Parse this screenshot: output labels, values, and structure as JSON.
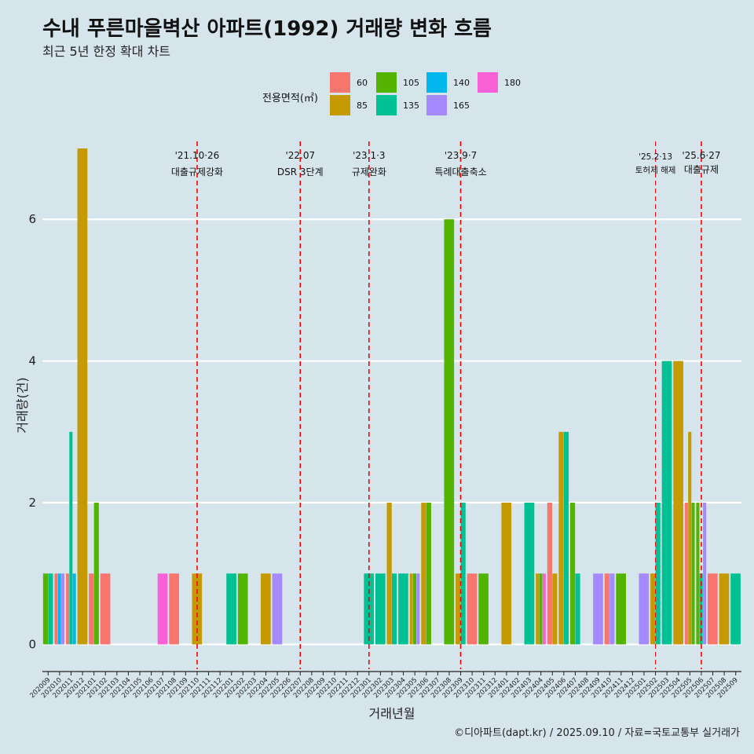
{
  "chart_data": {
    "type": "bar",
    "title": "수내 푸른마을벽산 아파트(1992) 거래량 변화 흐름",
    "subtitle": "최근 5년 한정 확대 차트",
    "xlabel": "거래년월",
    "ylabel": "거래량(건)",
    "ylim": [
      -0.35,
      7.1
    ],
    "yticks": [
      0,
      2,
      4,
      6
    ],
    "legend_title": "전용면적(㎡)",
    "legend_position": "top",
    "grid": "y-major",
    "caption": "©디아파트(dapt.kr) / 2025.09.10 / 자료=국토교통부 실거래가",
    "categories": [
      "202009",
      "202010",
      "202011",
      "202012",
      "202101",
      "202102",
      "202103",
      "202104",
      "202105",
      "202106",
      "202107",
      "202108",
      "202109",
      "202110",
      "202111",
      "202112",
      "202201",
      "202202",
      "202203",
      "202204",
      "202205",
      "202206",
      "202207",
      "202208",
      "202209",
      "202210",
      "202211",
      "202212",
      "202301",
      "202302",
      "202303",
      "202304",
      "202305",
      "202306",
      "202307",
      "202308",
      "202309",
      "202310",
      "202311",
      "202312",
      "202401",
      "202402",
      "202403",
      "202404",
      "202405",
      "202406",
      "202407",
      "202408",
      "202409",
      "202410",
      "202411",
      "202412",
      "202501",
      "202502",
      "202503",
      "202504",
      "202505",
      "202506",
      "202507",
      "202508",
      "202509"
    ],
    "series": [
      {
        "name": "60",
        "color": "#f8766d",
        "values": [
          0,
          1,
          1,
          0,
          1,
          1,
          0,
          0,
          0,
          0,
          0,
          1,
          0,
          0,
          0,
          0,
          0,
          0,
          0,
          0,
          0,
          0,
          0,
          0,
          0,
          0,
          0,
          0,
          0,
          0,
          0,
          0,
          0,
          0,
          0,
          0,
          0,
          1,
          0,
          0,
          0,
          0,
          0,
          0,
          2,
          0,
          0,
          0,
          0,
          1,
          0,
          0,
          0,
          0,
          0,
          0,
          2,
          0,
          1,
          0,
          0
        ]
      },
      {
        "name": "85",
        "color": "#c49a00",
        "values": [
          0,
          0,
          0,
          7,
          0,
          0,
          0,
          0,
          0,
          0,
          0,
          0,
          0,
          1,
          0,
          0,
          0,
          0,
          0,
          1,
          0,
          0,
          0,
          0,
          0,
          0,
          0,
          0,
          0,
          0,
          2,
          0,
          1,
          2,
          0,
          0,
          1,
          0,
          0,
          0,
          2,
          0,
          0,
          1,
          1,
          3,
          0,
          0,
          0,
          0,
          0,
          0,
          0,
          1,
          0,
          4,
          3,
          0,
          0,
          1,
          0
        ]
      },
      {
        "name": "105",
        "color": "#53b400",
        "values": [
          1,
          0,
          0,
          0,
          2,
          0,
          0,
          0,
          0,
          0,
          0,
          0,
          0,
          0,
          0,
          0,
          0,
          1,
          0,
          0,
          0,
          0,
          0,
          0,
          0,
          0,
          0,
          0,
          0,
          0,
          0,
          0,
          1,
          2,
          0,
          6,
          0,
          0,
          1,
          0,
          0,
          0,
          0,
          1,
          0,
          0,
          2,
          0,
          0,
          0,
          1,
          0,
          0,
          0,
          0,
          0,
          2,
          2,
          0,
          0,
          0
        ]
      },
      {
        "name": "135",
        "color": "#00c094",
        "values": [
          1,
          0,
          3,
          0,
          0,
          0,
          0,
          0,
          0,
          0,
          0,
          0,
          0,
          0,
          0,
          0,
          1,
          0,
          0,
          0,
          0,
          0,
          0,
          0,
          0,
          0,
          0,
          0,
          1,
          1,
          1,
          1,
          0,
          0,
          0,
          0,
          2,
          0,
          0,
          0,
          0,
          0,
          2,
          0,
          0,
          3,
          1,
          0,
          0,
          0,
          0,
          0,
          0,
          2,
          4,
          0,
          0,
          1,
          0,
          0,
          1
        ]
      },
      {
        "name": "140",
        "color": "#00b6eb",
        "values": [
          0,
          1,
          1,
          0,
          0,
          0,
          0,
          0,
          0,
          0,
          0,
          0,
          0,
          0,
          0,
          0,
          0,
          0,
          0,
          0,
          0,
          0,
          0,
          0,
          0,
          0,
          0,
          0,
          0,
          0,
          0,
          0,
          0,
          0,
          0,
          0,
          0,
          0,
          0,
          0,
          0,
          0,
          0,
          0,
          0,
          0,
          0,
          0,
          0,
          0,
          0,
          0,
          0,
          0,
          0,
          0,
          0,
          0,
          0,
          0,
          0
        ]
      },
      {
        "name": "165",
        "color": "#a58aff",
        "values": [
          0,
          1,
          0,
          0,
          0,
          0,
          0,
          0,
          0,
          0,
          0,
          0,
          0,
          0,
          0,
          0,
          0,
          0,
          0,
          0,
          1,
          0,
          0,
          0,
          0,
          0,
          0,
          0,
          0,
          0,
          0,
          0,
          1,
          0,
          0,
          0,
          0,
          0,
          0,
          0,
          0,
          0,
          0,
          0,
          0,
          0,
          0,
          0,
          1,
          1,
          0,
          0,
          1,
          0,
          0,
          0,
          0,
          2,
          0,
          0,
          0
        ]
      },
      {
        "name": "180",
        "color": "#fb61d7",
        "values": [
          0,
          0,
          0,
          0,
          0,
          0,
          0,
          0,
          0,
          0,
          1,
          0,
          0,
          0,
          0,
          0,
          0,
          0,
          0,
          0,
          0,
          0,
          0,
          0,
          0,
          0,
          0,
          0,
          0,
          0,
          0,
          0,
          0,
          0,
          0,
          0,
          0,
          0,
          0,
          0,
          0,
          0,
          0,
          1,
          0,
          0,
          0,
          0,
          0,
          0,
          0,
          0,
          0,
          0,
          0,
          0,
          0,
          0,
          0,
          0,
          0
        ]
      }
    ],
    "annotations": [
      {
        "x": "202110",
        "date": "'21.10·26",
        "label": "대출규제강화"
      },
      {
        "x": "202207",
        "date": "'22.07",
        "label": "DSR 3단계"
      },
      {
        "x": "202301",
        "date": "'23.1·3",
        "label": "규제완화"
      },
      {
        "x": "202309",
        "date": "'23.9·7",
        "label": "특례대출축소"
      },
      {
        "x": "202502",
        "date": "'25.2·13",
        "label": "토허제 해제"
      },
      {
        "x": "202506",
        "date": "'25.6·27",
        "label": "대출규제"
      }
    ],
    "annotation_color": "#ff0000"
  }
}
